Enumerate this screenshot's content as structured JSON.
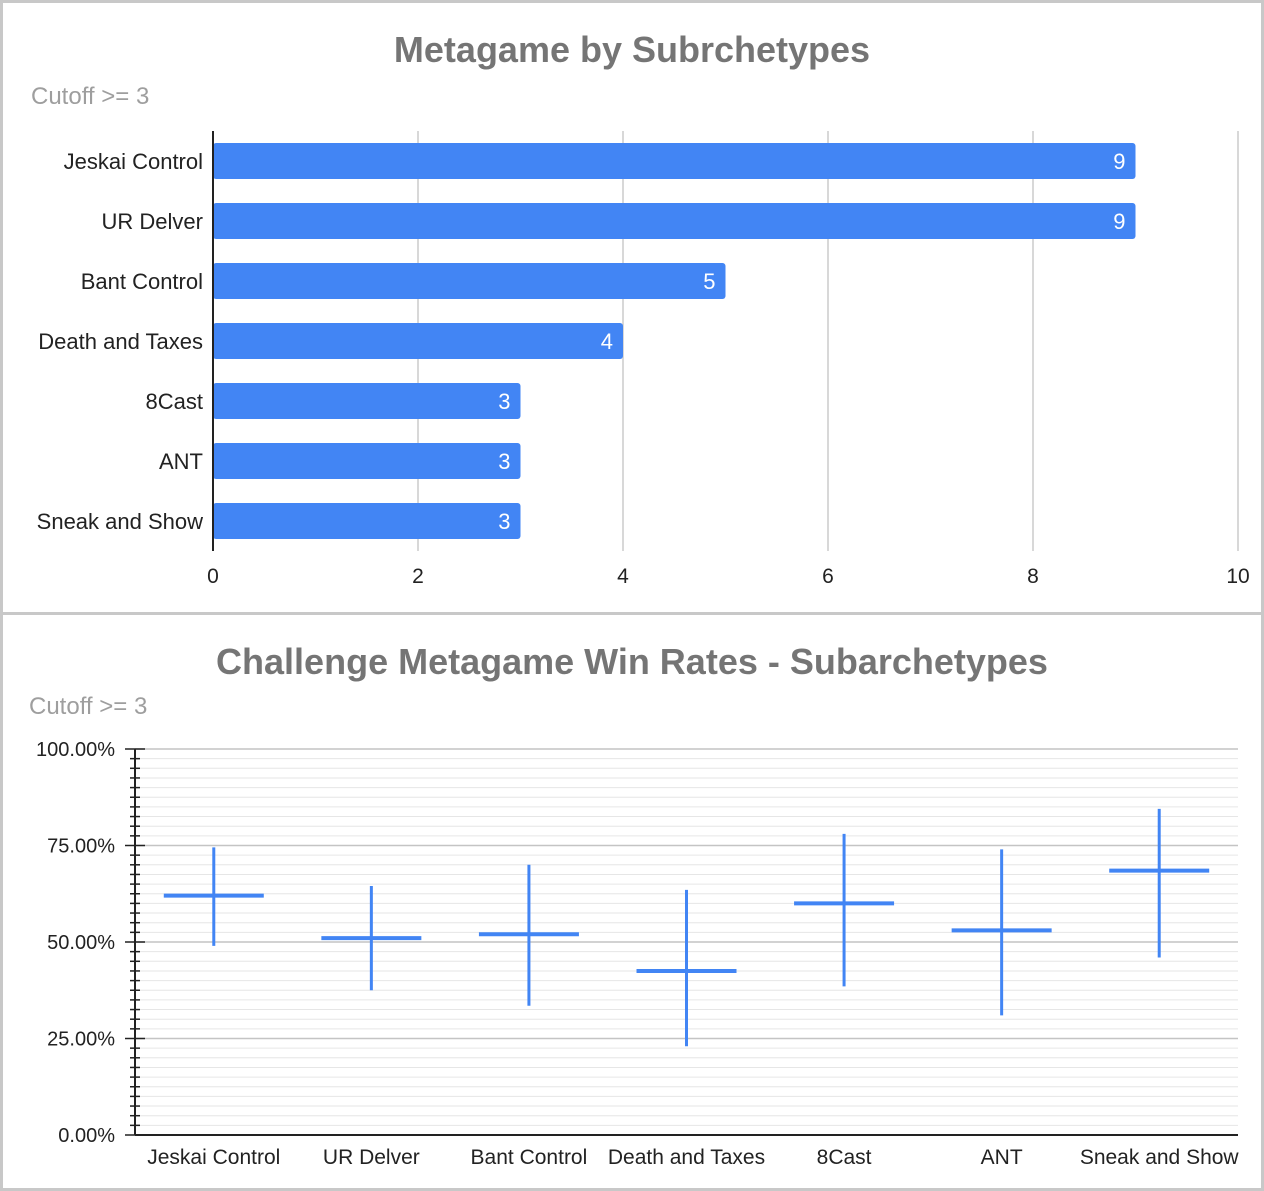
{
  "colors": {
    "bar": "#4285f4",
    "grid": "#cccccc",
    "axis": "#222222",
    "label": "#222222"
  },
  "chart_data": [
    {
      "type": "bar",
      "orientation": "horizontal",
      "title": "Metagame by Subrchetypes",
      "subtitle": "Cutoff >= 3",
      "categories": [
        "Jeskai Control",
        "UR Delver",
        "Bant Control",
        "Death and Taxes",
        "8Cast",
        "ANT",
        "Sneak and Show"
      ],
      "values": [
        9,
        9,
        5,
        4,
        3,
        3,
        3
      ],
      "data_labels": [
        "9",
        "9",
        "5",
        "4",
        "3",
        "3",
        "3"
      ],
      "xlim": [
        0,
        10
      ],
      "x_ticks": [
        "0",
        "2",
        "4",
        "6",
        "8",
        "10"
      ],
      "grid": true,
      "legend": "none"
    },
    {
      "type": "candlestick",
      "title": "Challenge Metagame Win Rates - Subarchetypes",
      "subtitle": "Cutoff >= 3",
      "categories": [
        "Jeskai Control",
        "UR Delver",
        "Bant Control",
        "Death and Taxes",
        "8Cast",
        "ANT",
        "Sneak and Show"
      ],
      "low": [
        49.0,
        37.5,
        33.5,
        23.0,
        38.5,
        31.0,
        46.0
      ],
      "high": [
        74.5,
        64.5,
        70.0,
        63.5,
        78.0,
        74.0,
        84.5
      ],
      "win_rate": [
        62.0,
        51.0,
        52.0,
        42.5,
        60.0,
        53.0,
        68.5
      ],
      "ylim": [
        0,
        100
      ],
      "y_ticks": [
        "0.00%",
        "25.00%",
        "50.00%",
        "75.00%",
        "100.00%"
      ],
      "grid": true,
      "legend": "none"
    }
  ]
}
